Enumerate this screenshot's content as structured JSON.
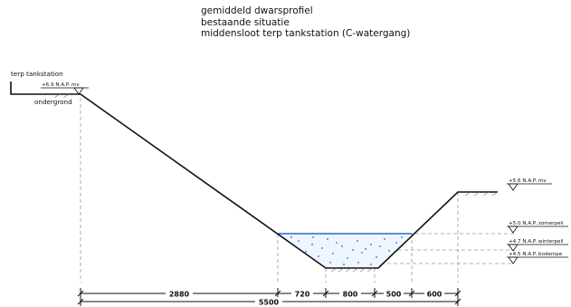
{
  "title": {
    "line1": "gemiddeld dwarsprofiel",
    "line2": "bestaande situatie",
    "line3": "middensloot terp tankstation (C-watergang)"
  },
  "labels": {
    "terp": "terp tankstation",
    "mv_left": "+6.9 N.A.P. mv",
    "ondergrond": "ondergrond",
    "mv_right": "+5.6 N.A.P. mv",
    "zomerpeil": "+5.0 N.A.P. zomerpeil",
    "winterpeil": "+4.7 N.A.P. winterpeil",
    "bodempeil": "+4.5 N.A.P. bodempe"
  },
  "dimensions": {
    "segments": [
      "2880",
      "720",
      "800",
      "500",
      "600"
    ],
    "total": "5500"
  },
  "colors": {
    "line": "#111111",
    "water": "#1f6fd1",
    "guide": "#9a9a9a"
  }
}
